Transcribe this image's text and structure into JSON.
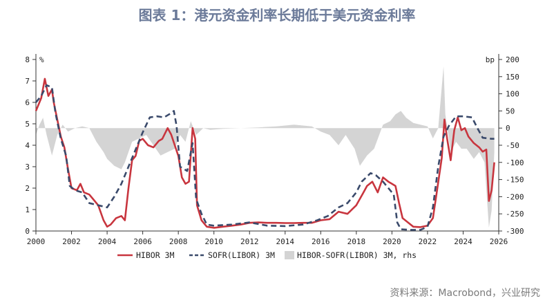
{
  "title": "图表 1：港元资金利率长期低于美元资金利率",
  "source": "资料来源：Macrobond，兴业研究",
  "chart_data": {
    "type": "line",
    "y_left_unit": "%",
    "y_right_unit": "bp",
    "xlim": [
      2000,
      2026
    ],
    "ylim_left": [
      0,
      8
    ],
    "ylim_right": [
      -300,
      200
    ],
    "x_ticks": [
      "2000",
      "2002",
      "2004",
      "2006",
      "2008",
      "2010",
      "2012",
      "2014",
      "2016",
      "2018",
      "2020",
      "2022",
      "2024",
      "2026"
    ],
    "y_left_ticks": [
      "0",
      "1",
      "2",
      "3",
      "4",
      "5",
      "6",
      "7",
      "8"
    ],
    "y_right_ticks": [
      "-300",
      "-250",
      "-200",
      "-150",
      "-100",
      "-50",
      "0",
      "50",
      "100",
      "150",
      "200"
    ],
    "series": [
      {
        "name": "HIBOR 3M",
        "color": "#c8353e",
        "style": "solid",
        "axis": "left",
        "points": [
          [
            2000.0,
            5.6
          ],
          [
            2000.3,
            6.2
          ],
          [
            2000.5,
            7.1
          ],
          [
            2000.7,
            6.3
          ],
          [
            2000.9,
            6.6
          ],
          [
            2001.0,
            6.0
          ],
          [
            2001.2,
            5.2
          ],
          [
            2001.4,
            4.4
          ],
          [
            2001.6,
            3.9
          ],
          [
            2001.8,
            2.9
          ],
          [
            2002.0,
            2.0
          ],
          [
            2002.3,
            1.9
          ],
          [
            2002.5,
            2.2
          ],
          [
            2002.7,
            1.8
          ],
          [
            2003.0,
            1.7
          ],
          [
            2003.2,
            1.5
          ],
          [
            2003.5,
            1.2
          ],
          [
            2003.8,
            0.5
          ],
          [
            2004.0,
            0.2
          ],
          [
            2004.2,
            0.3
          ],
          [
            2004.5,
            0.6
          ],
          [
            2004.8,
            0.7
          ],
          [
            2005.0,
            0.5
          ],
          [
            2005.2,
            2.0
          ],
          [
            2005.4,
            3.3
          ],
          [
            2005.6,
            3.5
          ],
          [
            2005.8,
            4.2
          ],
          [
            2006.0,
            4.3
          ],
          [
            2006.3,
            4.0
          ],
          [
            2006.6,
            3.9
          ],
          [
            2006.9,
            4.2
          ],
          [
            2007.1,
            4.3
          ],
          [
            2007.4,
            4.8
          ],
          [
            2007.6,
            4.5
          ],
          [
            2007.8,
            4.0
          ],
          [
            2008.0,
            3.5
          ],
          [
            2008.2,
            2.5
          ],
          [
            2008.4,
            2.2
          ],
          [
            2008.6,
            2.3
          ],
          [
            2008.8,
            4.8
          ],
          [
            2008.95,
            4.3
          ],
          [
            2009.05,
            1.2
          ],
          [
            2009.3,
            0.5
          ],
          [
            2009.6,
            0.2
          ],
          [
            2010.0,
            0.15
          ],
          [
            2010.5,
            0.2
          ],
          [
            2011.0,
            0.25
          ],
          [
            2011.5,
            0.3
          ],
          [
            2012.0,
            0.38
          ],
          [
            2012.5,
            0.4
          ],
          [
            2013.0,
            0.38
          ],
          [
            2013.5,
            0.38
          ],
          [
            2014.0,
            0.37
          ],
          [
            2014.5,
            0.37
          ],
          [
            2015.0,
            0.38
          ],
          [
            2015.5,
            0.38
          ],
          [
            2016.0,
            0.5
          ],
          [
            2016.5,
            0.55
          ],
          [
            2017.0,
            0.9
          ],
          [
            2017.5,
            0.8
          ],
          [
            2018.0,
            1.2
          ],
          [
            2018.4,
            1.8
          ],
          [
            2018.6,
            2.1
          ],
          [
            2018.9,
            2.3
          ],
          [
            2019.2,
            1.8
          ],
          [
            2019.5,
            2.5
          ],
          [
            2019.8,
            2.3
          ],
          [
            2020.0,
            2.2
          ],
          [
            2020.2,
            2.1
          ],
          [
            2020.4,
            1.3
          ],
          [
            2020.6,
            0.6
          ],
          [
            2020.9,
            0.4
          ],
          [
            2021.2,
            0.2
          ],
          [
            2021.6,
            0.18
          ],
          [
            2022.0,
            0.25
          ],
          [
            2022.3,
            0.6
          ],
          [
            2022.5,
            1.7
          ],
          [
            2022.8,
            3.4
          ],
          [
            2022.95,
            5.2
          ],
          [
            2023.1,
            4.3
          ],
          [
            2023.3,
            3.3
          ],
          [
            2023.5,
            4.7
          ],
          [
            2023.7,
            5.3
          ],
          [
            2023.9,
            4.7
          ],
          [
            2024.1,
            4.8
          ],
          [
            2024.3,
            4.4
          ],
          [
            2024.6,
            4.1
          ],
          [
            2024.9,
            3.9
          ],
          [
            2025.1,
            3.7
          ],
          [
            2025.3,
            3.8
          ],
          [
            2025.45,
            1.4
          ],
          [
            2025.6,
            1.9
          ],
          [
            2025.75,
            3.2
          ]
        ]
      },
      {
        "name": "SOFR(LIBOR) 3M",
        "color": "#3a4a6b",
        "style": "dashed",
        "axis": "left",
        "points": [
          [
            2000.0,
            6.0
          ],
          [
            2000.3,
            6.3
          ],
          [
            2000.6,
            6.8
          ],
          [
            2000.9,
            6.7
          ],
          [
            2001.1,
            5.5
          ],
          [
            2001.4,
            4.3
          ],
          [
            2001.7,
            3.5
          ],
          [
            2001.9,
            2.1
          ],
          [
            2002.2,
            1.9
          ],
          [
            2002.6,
            1.8
          ],
          [
            2003.0,
            1.3
          ],
          [
            2003.5,
            1.2
          ],
          [
            2004.0,
            1.1
          ],
          [
            2004.4,
            1.6
          ],
          [
            2004.8,
            2.2
          ],
          [
            2005.2,
            3.0
          ],
          [
            2005.6,
            3.8
          ],
          [
            2006.0,
            4.6
          ],
          [
            2006.4,
            5.3
          ],
          [
            2006.8,
            5.35
          ],
          [
            2007.2,
            5.3
          ],
          [
            2007.6,
            5.5
          ],
          [
            2007.75,
            5.6
          ],
          [
            2007.9,
            4.9
          ],
          [
            2008.1,
            3.0
          ],
          [
            2008.5,
            2.8
          ],
          [
            2008.8,
            4.1
          ],
          [
            2009.0,
            1.5
          ],
          [
            2009.3,
            0.8
          ],
          [
            2009.6,
            0.3
          ],
          [
            2010.0,
            0.25
          ],
          [
            2011.0,
            0.3
          ],
          [
            2012.0,
            0.4
          ],
          [
            2013.0,
            0.25
          ],
          [
            2014.0,
            0.23
          ],
          [
            2015.0,
            0.3
          ],
          [
            2015.8,
            0.5
          ],
          [
            2016.4,
            0.7
          ],
          [
            2017.0,
            1.1
          ],
          [
            2017.5,
            1.3
          ],
          [
            2018.0,
            1.8
          ],
          [
            2018.3,
            2.3
          ],
          [
            2018.8,
            2.7
          ],
          [
            2019.1,
            2.6
          ],
          [
            2019.5,
            2.3
          ],
          [
            2019.9,
            1.9
          ],
          [
            2020.1,
            1.7
          ],
          [
            2020.3,
            0.4
          ],
          [
            2020.5,
            0.08
          ],
          [
            2021.0,
            0.05
          ],
          [
            2021.6,
            0.05
          ],
          [
            2022.0,
            0.2
          ],
          [
            2022.3,
            1.1
          ],
          [
            2022.6,
            3.0
          ],
          [
            2022.9,
            4.4
          ],
          [
            2023.2,
            4.9
          ],
          [
            2023.6,
            5.35
          ],
          [
            2024.0,
            5.35
          ],
          [
            2024.5,
            5.3
          ],
          [
            2024.8,
            4.8
          ],
          [
            2025.1,
            4.35
          ],
          [
            2025.6,
            4.3
          ],
          [
            2025.75,
            4.3
          ]
        ]
      },
      {
        "name": "HIBOR-SOFR(LIBOR) 3M, rhs",
        "color": "#d4d4d4",
        "style": "area",
        "axis": "right",
        "points": [
          [
            2000.0,
            -20
          ],
          [
            2000.2,
            10
          ],
          [
            2000.4,
            30
          ],
          [
            2000.6,
            -20
          ],
          [
            2000.9,
            -80
          ],
          [
            2001.2,
            -20
          ],
          [
            2001.5,
            10
          ],
          [
            2001.8,
            -10
          ],
          [
            2002.2,
            0
          ],
          [
            2002.6,
            5
          ],
          [
            2003.0,
            0
          ],
          [
            2003.4,
            -40
          ],
          [
            2003.8,
            -70
          ],
          [
            2004.0,
            -90
          ],
          [
            2004.4,
            -110
          ],
          [
            2004.8,
            -120
          ],
          [
            2005.0,
            -100
          ],
          [
            2005.4,
            -40
          ],
          [
            2005.8,
            -30
          ],
          [
            2006.2,
            -20
          ],
          [
            2006.6,
            -50
          ],
          [
            2007.0,
            -80
          ],
          [
            2007.4,
            -70
          ],
          [
            2007.8,
            -60
          ],
          [
            2008.1,
            -20
          ],
          [
            2008.4,
            -40
          ],
          [
            2008.7,
            20
          ],
          [
            2009.0,
            -20
          ],
          [
            2009.4,
            0
          ],
          [
            2009.8,
            -5
          ],
          [
            2010.5,
            -2
          ],
          [
            2011.5,
            0
          ],
          [
            2012.5,
            2
          ],
          [
            2013.5,
            5
          ],
          [
            2014.5,
            10
          ],
          [
            2015.5,
            5
          ],
          [
            2016.0,
            -10
          ],
          [
            2016.5,
            -20
          ],
          [
            2017.0,
            -50
          ],
          [
            2017.4,
            -20
          ],
          [
            2017.9,
            -60
          ],
          [
            2018.2,
            -110
          ],
          [
            2018.6,
            -80
          ],
          [
            2019.0,
            -60
          ],
          [
            2019.5,
            10
          ],
          [
            2019.9,
            20
          ],
          [
            2020.2,
            40
          ],
          [
            2020.5,
            50
          ],
          [
            2020.8,
            30
          ],
          [
            2021.2,
            15
          ],
          [
            2021.6,
            10
          ],
          [
            2022.0,
            5
          ],
          [
            2022.3,
            -30
          ],
          [
            2022.6,
            0
          ],
          [
            2022.9,
            180
          ],
          [
            2023.0,
            40
          ],
          [
            2023.3,
            -70
          ],
          [
            2023.6,
            -40
          ],
          [
            2023.9,
            -60
          ],
          [
            2024.2,
            -60
          ],
          [
            2024.6,
            -90
          ],
          [
            2024.9,
            -70
          ],
          [
            2025.2,
            -100
          ],
          [
            2025.45,
            -290
          ],
          [
            2025.6,
            -240
          ],
          [
            2025.75,
            -70
          ]
        ]
      }
    ]
  }
}
